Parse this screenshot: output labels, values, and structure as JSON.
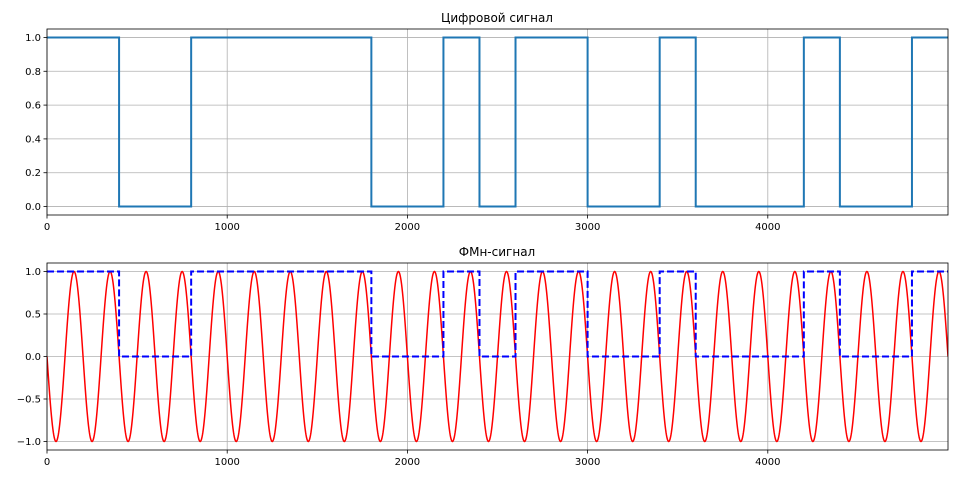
{
  "chart_data": [
    {
      "type": "line",
      "title": "Цифровой сигнал",
      "xlabel": "",
      "ylabel": "",
      "xlim": [
        0,
        5000
      ],
      "ylim": [
        -0.05,
        1.05
      ],
      "xticks": [
        0,
        1000,
        2000,
        3000,
        4000
      ],
      "xtick_labels": [
        "0",
        "1000",
        "2000",
        "3000",
        "4000"
      ],
      "yticks": [
        0.0,
        0.2,
        0.4,
        0.6,
        0.8,
        1.0
      ],
      "ytick_labels": [
        "0.0",
        "0.2",
        "0.4",
        "0.6",
        "0.8",
        "1.0"
      ],
      "grid": true,
      "series": [
        {
          "style": "step",
          "color": "#1f77b4",
          "bit_duration": 200,
          "bits": [
            1,
            1,
            0,
            0,
            1,
            1,
            1,
            1,
            1,
            0,
            0,
            1,
            0,
            1,
            1,
            0,
            0,
            1,
            0,
            0,
            0,
            1,
            0,
            0,
            1
          ]
        }
      ]
    },
    {
      "type": "line",
      "title": "ФМн-сигнал",
      "xlabel": "",
      "ylabel": "",
      "xlim": [
        0,
        5000
      ],
      "ylim": [
        -1.1,
        1.1
      ],
      "xticks": [
        0,
        1000,
        2000,
        3000,
        4000
      ],
      "xtick_labels": [
        "0",
        "1000",
        "2000",
        "3000",
        "4000"
      ],
      "yticks": [
        -1.0,
        -0.5,
        0.0,
        0.5,
        1.0
      ],
      "ytick_labels": [
        "−1.0",
        "−0.5",
        "0.0",
        "0.5",
        "1.0"
      ],
      "grid": true,
      "series": [
        {
          "style": "sine",
          "color": "#ff0000",
          "amplitude": 1.0,
          "period": 200,
          "phase_shift_on_bit_change": true
        },
        {
          "style": "step-dashed",
          "color": "#0000ff",
          "bit_duration": 200,
          "bits": [
            1,
            1,
            0,
            0,
            1,
            1,
            1,
            1,
            1,
            0,
            0,
            1,
            0,
            1,
            1,
            0,
            0,
            1,
            0,
            0,
            0,
            1,
            0,
            0,
            1
          ]
        }
      ]
    }
  ]
}
